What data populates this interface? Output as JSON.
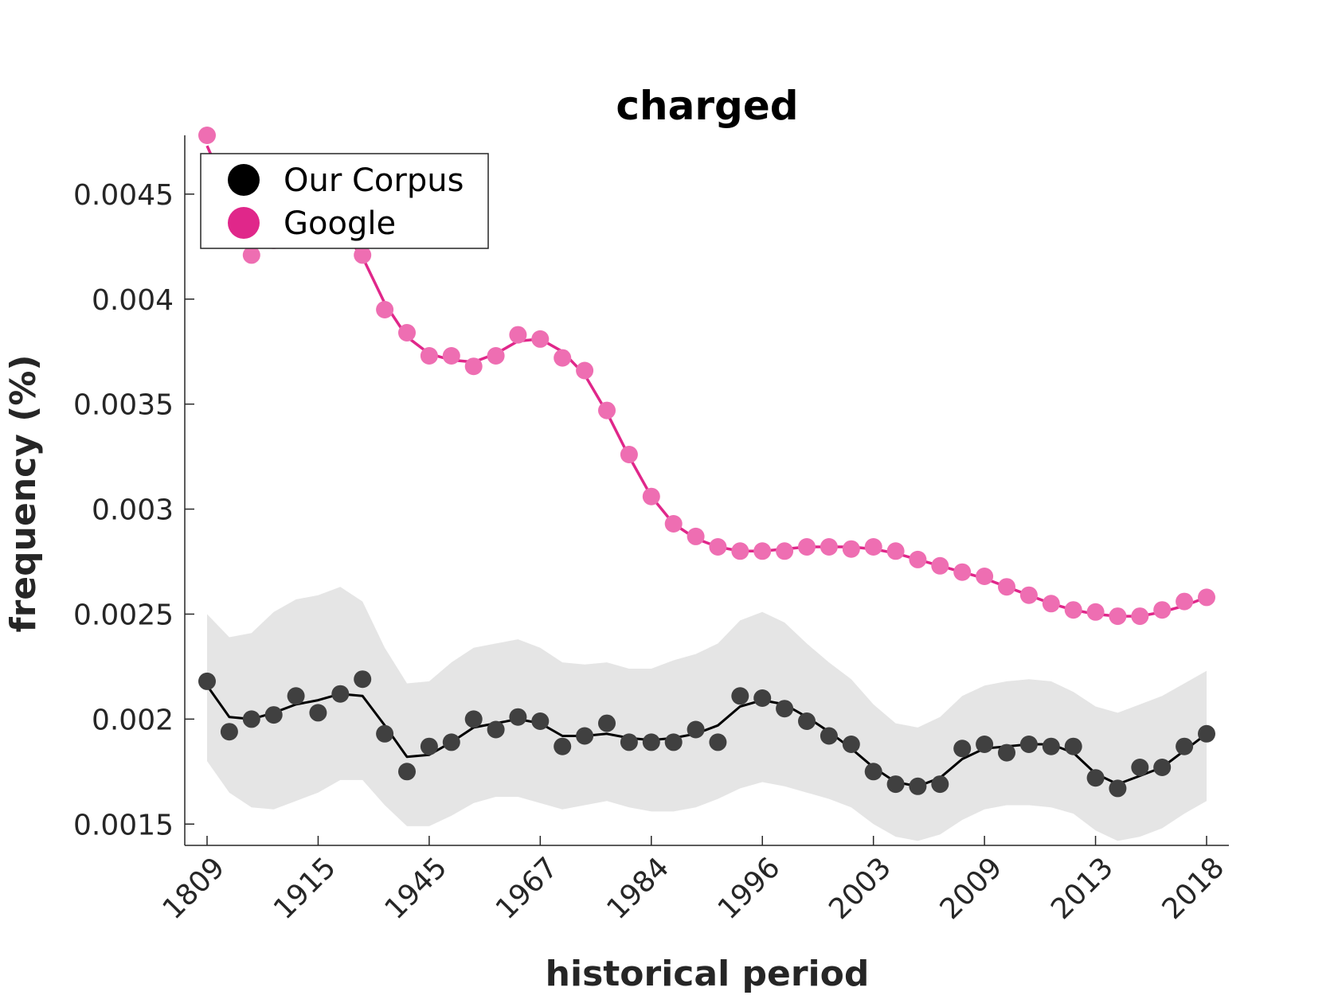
{
  "chart_data": {
    "type": "line",
    "title": "charged",
    "xlabel": "historical period",
    "ylabel": "frequency (%)",
    "ylim": [
      0.00141,
      0.00478
    ],
    "yticks": [
      "0.0015",
      "0.002",
      "0.0025",
      "0.003",
      "0.0035",
      "0.004",
      "0.0045"
    ],
    "x_tick_labels": [
      "1809",
      "1915",
      "1945",
      "1967",
      "1984",
      "1996",
      "2003",
      "2009",
      "2013",
      "2018"
    ],
    "x_tick_every": 5,
    "legend": {
      "position": "top-left"
    },
    "series": [
      {
        "name": "Our Corpus",
        "color": "#000000",
        "marker_color": "#404040",
        "points": [
          0.00218,
          0.00194,
          0.002,
          0.00202,
          0.00211,
          0.00203,
          0.00212,
          0.00219,
          0.00193,
          0.00175,
          0.00187,
          0.00189,
          0.002,
          0.00195,
          0.00201,
          0.00199,
          0.00187,
          0.00192,
          0.00198,
          0.00189,
          0.00189,
          0.00189,
          0.00195,
          0.00189,
          0.00211,
          0.0021,
          0.00205,
          0.00199,
          0.00192,
          0.00188,
          0.00175,
          0.00169,
          0.00168,
          0.00169,
          0.00186,
          0.00188,
          0.00184,
          0.00188,
          0.00187,
          0.00187,
          0.00172,
          0.00167,
          0.00177,
          0.00177,
          0.00187,
          0.00193
        ],
        "line": [
          0.00216,
          0.00201,
          0.002,
          0.00203,
          0.00207,
          0.00209,
          0.00212,
          0.00211,
          0.00197,
          0.00182,
          0.00183,
          0.00189,
          0.00196,
          0.00198,
          0.002,
          0.00198,
          0.00192,
          0.00192,
          0.00193,
          0.00191,
          0.0019,
          0.00191,
          0.00193,
          0.00197,
          0.00206,
          0.00209,
          0.00207,
          0.00201,
          0.00194,
          0.00186,
          0.00177,
          0.0017,
          0.00168,
          0.00172,
          0.00181,
          0.00186,
          0.00187,
          0.00188,
          0.00188,
          0.00184,
          0.00174,
          0.00169,
          0.00173,
          0.00177,
          0.00185,
          0.00193
        ],
        "band_upper": [
          0.0025,
          0.00239,
          0.00241,
          0.00251,
          0.00257,
          0.00259,
          0.00263,
          0.00256,
          0.00234,
          0.00217,
          0.00218,
          0.00227,
          0.00234,
          0.00236,
          0.00238,
          0.00234,
          0.00227,
          0.00226,
          0.00227,
          0.00224,
          0.00224,
          0.00228,
          0.00231,
          0.00236,
          0.00247,
          0.00251,
          0.00246,
          0.00236,
          0.00227,
          0.00219,
          0.00207,
          0.00198,
          0.00196,
          0.00201,
          0.00211,
          0.00216,
          0.00218,
          0.00219,
          0.00218,
          0.00213,
          0.00206,
          0.00203,
          0.00207,
          0.00211,
          0.00217,
          0.00223
        ],
        "band_lower": [
          0.0018,
          0.00165,
          0.00158,
          0.00157,
          0.00161,
          0.00165,
          0.00171,
          0.00171,
          0.00159,
          0.00149,
          0.00149,
          0.00154,
          0.0016,
          0.00163,
          0.00163,
          0.0016,
          0.00157,
          0.00159,
          0.00161,
          0.00158,
          0.00156,
          0.00156,
          0.00158,
          0.00162,
          0.00167,
          0.0017,
          0.00168,
          0.00165,
          0.00162,
          0.00158,
          0.0015,
          0.00144,
          0.00142,
          0.00145,
          0.00152,
          0.00157,
          0.00159,
          0.00159,
          0.00158,
          0.00155,
          0.00147,
          0.00142,
          0.00144,
          0.00148,
          0.00155,
          0.00161
        ]
      },
      {
        "name": "Google",
        "color": "#e0278a",
        "marker_color": "#ee6eb2",
        "points": [
          0.00478,
          0.00436,
          0.00421,
          0.00428,
          0.00437,
          0.0044,
          0.00434,
          0.00421,
          0.00395,
          0.00384,
          0.00373,
          0.00373,
          0.00368,
          0.00373,
          0.00383,
          0.00381,
          0.00372,
          0.00366,
          0.00347,
          0.00326,
          0.00306,
          0.00293,
          0.00287,
          0.00282,
          0.0028,
          0.0028,
          0.0028,
          0.00282,
          0.00282,
          0.00281,
          0.00282,
          0.0028,
          0.00276,
          0.00273,
          0.0027,
          0.00268,
          0.00263,
          0.00259,
          0.00255,
          0.00252,
          0.00251,
          0.00249,
          0.00249,
          0.00252,
          0.00256,
          0.00258
        ],
        "line": [
          0.00473,
          0.00449,
          0.00432,
          0.00428,
          0.00433,
          0.00437,
          0.00434,
          0.0042,
          0.00398,
          0.00382,
          0.00374,
          0.00371,
          0.0037,
          0.00374,
          0.0038,
          0.00381,
          0.00375,
          0.00364,
          0.00346,
          0.00325,
          0.00306,
          0.00293,
          0.00286,
          0.00282,
          0.0028,
          0.0028,
          0.00281,
          0.00282,
          0.00282,
          0.00282,
          0.00281,
          0.00279,
          0.00276,
          0.00273,
          0.0027,
          0.00267,
          0.00263,
          0.00259,
          0.00255,
          0.00252,
          0.0025,
          0.00249,
          0.00249,
          0.00251,
          0.00254,
          0.00258
        ]
      }
    ]
  }
}
